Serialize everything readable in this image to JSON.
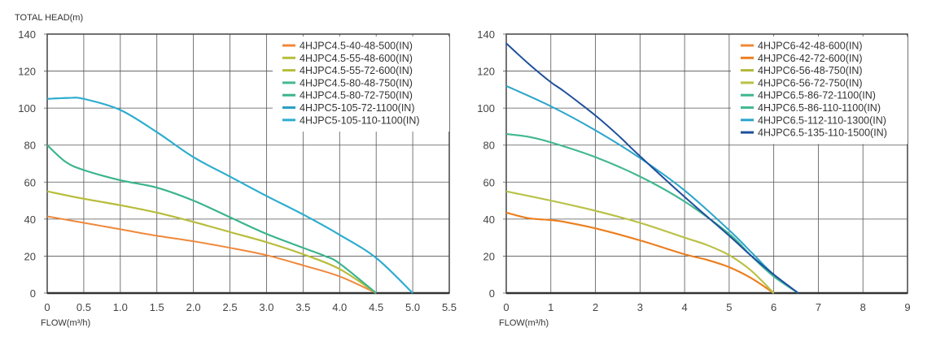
{
  "chart_data": [
    {
      "type": "line",
      "ylabel": "TOTAL HEAD(m)",
      "xlabel": "FLOW(m³/h)",
      "xlim": [
        0,
        5.5
      ],
      "ylim": [
        0,
        140
      ],
      "xticks": [
        "0",
        "0.5",
        "1.0",
        "1.5",
        "2.0",
        "2.5",
        "3.0",
        "3.5",
        "4.0",
        "4.5",
        "5.0",
        "5.5"
      ],
      "xtick_values": [
        0,
        0.5,
        1,
        1.5,
        2,
        2.5,
        3,
        3.5,
        4,
        4.5,
        5,
        5.5
      ],
      "yticks": [
        "0",
        "20",
        "40",
        "60",
        "80",
        "100",
        "120",
        "140"
      ],
      "ytick_values": [
        0,
        20,
        40,
        60,
        80,
        100,
        120,
        140
      ],
      "grid": true,
      "legend_position": "top-right",
      "series": [
        {
          "name": "4HJPC4.5-40-48-500(IN)",
          "color": "#f0883a",
          "x": [
            0,
            0.5,
            1,
            1.5,
            2,
            2.5,
            3,
            3.5,
            4,
            4.5
          ],
          "y": [
            41.5,
            38,
            34.5,
            31,
            28,
            24.5,
            20.5,
            15,
            9,
            0
          ]
        },
        {
          "name": "4HJPC4.5-55-48-600(IN)",
          "color": "#b7bd3a",
          "x": [
            0,
            0.5,
            1,
            1.5,
            2,
            2.5,
            3,
            3.5,
            4,
            4.5
          ],
          "y": [
            55,
            51,
            47.5,
            43.5,
            38.5,
            33,
            27.5,
            21,
            13,
            0
          ]
        },
        {
          "name": "4HJPC4.5-55-72-600(IN)",
          "color": "#b7bd3a",
          "x": [
            0,
            0.5,
            1,
            1.5,
            2,
            2.5,
            3,
            3.5,
            4,
            4.5
          ],
          "y": [
            55,
            51,
            47.5,
            43.5,
            38.5,
            33,
            27.5,
            21,
            13,
            0
          ]
        },
        {
          "name": "4HJPC4.5-80-48-750(IN)",
          "color": "#45b893",
          "x": [
            0,
            0.25,
            0.5,
            1,
            1.5,
            2,
            2.5,
            3,
            3.5,
            3.8,
            4,
            4.5
          ],
          "y": [
            80,
            71,
            66.5,
            61,
            57,
            50,
            41,
            32,
            24.5,
            20,
            16,
            0
          ]
        },
        {
          "name": "4HJPC4.5-80-72-750(IN)",
          "color": "#3bb48e",
          "x": [
            0,
            0.25,
            0.5,
            1,
            1.5,
            2,
            2.5,
            3,
            3.5,
            3.8,
            4,
            4.5
          ],
          "y": [
            80,
            71,
            66.5,
            61,
            57,
            50,
            41,
            32,
            24.5,
            20,
            16,
            0
          ]
        },
        {
          "name": "4HJPC5-105-72-1100(IN)",
          "color": "#2a9fc4",
          "x": [
            0,
            0.3,
            0.5,
            1,
            1.5,
            2,
            2.5,
            3,
            3.5,
            4,
            4.5,
            5
          ],
          "y": [
            105,
            105.5,
            105,
            99,
            87,
            73.5,
            63,
            52.5,
            42.5,
            31.5,
            19,
            0
          ]
        },
        {
          "name": "4HJPC5-105-110-1100(IN)",
          "color": "#2eaed0",
          "x": [
            0,
            0.3,
            0.5,
            1,
            1.5,
            2,
            2.5,
            3,
            3.5,
            4,
            4.5,
            5
          ],
          "y": [
            105,
            105.5,
            105,
            99,
            87,
            73.5,
            63,
            52.5,
            42.5,
            31.5,
            19,
            0
          ]
        }
      ]
    },
    {
      "type": "line",
      "xlabel": "FLOW(m³/h)",
      "xlim": [
        0,
        9
      ],
      "ylim": [
        0,
        140
      ],
      "xticks": [
        "0",
        "1",
        "2",
        "3",
        "4",
        "5",
        "6",
        "7",
        "8",
        "9"
      ],
      "xtick_values": [
        0,
        1,
        2,
        3,
        4,
        5,
        6,
        7,
        8,
        9
      ],
      "yticks": [
        "0",
        "20",
        "40",
        "60",
        "80",
        "100",
        "120",
        "140"
      ],
      "ytick_values": [
        0,
        20,
        40,
        60,
        80,
        100,
        120,
        140
      ],
      "grid": true,
      "legend_position": "top-right",
      "series": [
        {
          "name": "4HJPC6-42-48-600(IN)",
          "color": "#f0883a",
          "x": [
            0,
            0.5,
            1,
            1.3,
            2,
            3,
            4,
            4.5,
            5,
            5.5,
            6
          ],
          "y": [
            43.5,
            40.5,
            39.5,
            38.5,
            35,
            28.5,
            21,
            18,
            14,
            8,
            0
          ]
        },
        {
          "name": "4HJPC6-42-72-600(IN)",
          "color": "#ec7f1e",
          "x": [
            0,
            0.5,
            1,
            1.3,
            2,
            3,
            4,
            4.5,
            5,
            5.5,
            6
          ],
          "y": [
            43.5,
            40.5,
            39.5,
            38.5,
            35,
            28.5,
            21,
            18,
            14,
            8,
            0
          ]
        },
        {
          "name": "4HJPC6-56-48-750(IN)",
          "color": "#b3b83a",
          "x": [
            0,
            1,
            2,
            3,
            4,
            4.5,
            5,
            5.5,
            6
          ],
          "y": [
            55,
            50,
            44.5,
            38,
            30,
            26,
            20.5,
            12,
            0
          ]
        },
        {
          "name": "4HJPC6-56-72-750(IN)",
          "color": "#b9c246",
          "x": [
            0,
            1,
            2,
            3,
            4,
            4.5,
            5,
            5.5,
            6
          ],
          "y": [
            55,
            50,
            44.5,
            38,
            30,
            26,
            20.5,
            12,
            0
          ]
        },
        {
          "name": "4HJPC6.5-86-72-1100(IN)",
          "color": "#3db58f",
          "x": [
            0,
            0.5,
            1,
            2,
            3,
            4,
            5,
            5.5,
            6,
            6.55
          ],
          "y": [
            86,
            84.5,
            81.5,
            73.5,
            63,
            49.5,
            32,
            20,
            9,
            0
          ]
        },
        {
          "name": "4HJPC6.5-86-110-1100(IN)",
          "color": "#45b893",
          "x": [
            0,
            0.5,
            1,
            2,
            3,
            4,
            5,
            5.5,
            6,
            6.55
          ],
          "y": [
            86,
            84.5,
            81.5,
            73.5,
            63,
            49.5,
            32,
            20,
            9,
            0
          ]
        },
        {
          "name": "4HJPC6.5-112-110-1300(IN)",
          "color": "#2aa5cc",
          "x": [
            0,
            1,
            2,
            3,
            4,
            5,
            5.5,
            6,
            6.55
          ],
          "y": [
            112,
            101,
            88,
            73,
            55.5,
            34,
            22,
            10,
            0
          ]
        },
        {
          "name": "4HJPC6.5-135-110-1500(IN)",
          "color": "#1f4f9c",
          "x": [
            0,
            0.5,
            1,
            1.3,
            2,
            2.5,
            3,
            4,
            5,
            5.5,
            6,
            6.55
          ],
          "y": [
            135,
            124,
            114,
            109,
            96,
            85.5,
            74,
            52,
            31,
            20,
            10,
            0
          ]
        }
      ]
    }
  ]
}
